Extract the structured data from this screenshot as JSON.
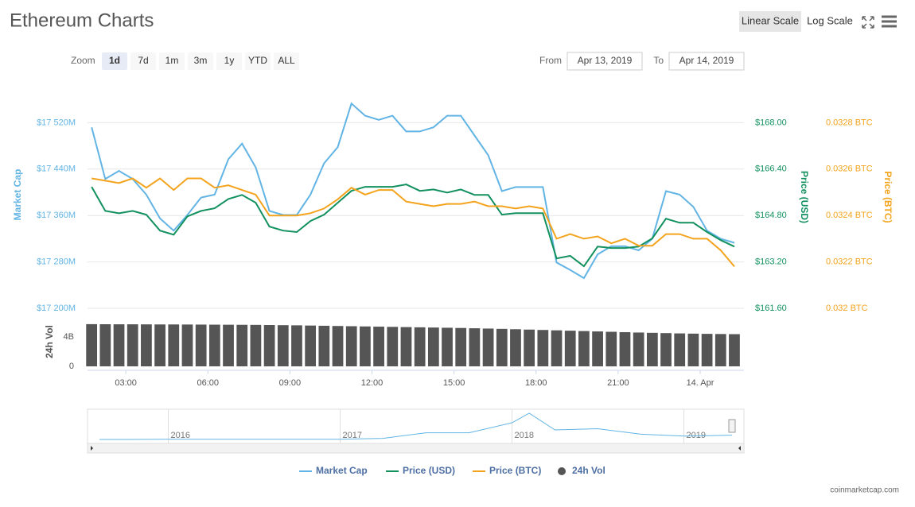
{
  "chart_data": [
    {
      "type": "line",
      "title": "Ethereum Charts",
      "log_scale": false,
      "grid": true,
      "ylabel": "Market Cap",
      "y2label": "Price (USD)",
      "y3label": "Price (BTC)",
      "xlim": [
        1.6,
        25.6
      ],
      "ylim": [
        17200,
        17600
      ],
      "yticks": [
        {
          "value": 17200,
          "label": "$17 200M"
        },
        {
          "value": 17280,
          "label": "$17 280M"
        },
        {
          "value": 17360,
          "label": "$17 360M"
        },
        {
          "value": 17440,
          "label": "$17 440M"
        },
        {
          "value": 17520,
          "label": "$17 520M"
        }
      ],
      "y2lim": [
        161.6,
        169.6
      ],
      "y2ticks": [
        {
          "value": 161.6,
          "label": "$161.60"
        },
        {
          "value": 163.2,
          "label": "$163.20"
        },
        {
          "value": 164.8,
          "label": "$164.80"
        },
        {
          "value": 166.4,
          "label": "$166.40"
        },
        {
          "value": 168,
          "label": "$168.00"
        }
      ],
      "y3lim": [
        0.032,
        0.033
      ],
      "y3ticks": [
        {
          "value": 0.032,
          "label": "0.032 BTC"
        },
        {
          "value": 0.0322,
          "label": "0.0322 BTC"
        },
        {
          "value": 0.0324,
          "label": "0.0324 BTC"
        },
        {
          "value": 0.0326,
          "label": "0.0326 BTC"
        },
        {
          "value": 0.0328,
          "label": "0.0328 BTC"
        }
      ],
      "x": [
        1.75,
        2.25,
        2.75,
        3.25,
        3.75,
        4.25,
        4.75,
        5.25,
        5.75,
        6.25,
        6.75,
        7.25,
        7.75,
        8.25,
        8.75,
        9.25,
        9.75,
        10.25,
        10.75,
        11.25,
        11.75,
        12.25,
        12.75,
        13.25,
        13.75,
        14.25,
        14.75,
        15.25,
        15.75,
        16.25,
        16.75,
        17.25,
        17.75,
        18.25,
        18.75,
        19.25,
        19.75,
        20.25,
        20.75,
        21.25,
        21.75,
        22.25,
        22.75,
        23.25,
        23.75,
        24.25,
        24.75,
        25.25
      ],
      "series": [
        {
          "name": "Market Cap",
          "color": "#62b4e4",
          "axis": "y",
          "values": [
            17512,
            17423,
            17437,
            17423,
            17396,
            17355,
            17334,
            17361,
            17391,
            17396,
            17457,
            17484,
            17443,
            17368,
            17361,
            17361,
            17396,
            17450,
            17478,
            17553,
            17532,
            17525,
            17532,
            17505,
            17505,
            17512,
            17532,
            17532,
            17498,
            17464,
            17402,
            17409,
            17409,
            17409,
            17279,
            17266,
            17252,
            17293,
            17307,
            17307,
            17300,
            17320,
            17402,
            17396,
            17375,
            17334,
            17320,
            17313
          ]
        },
        {
          "name": "Price (USD)",
          "color": "#12915f",
          "axis": "y2",
          "values": [
            165.79,
            164.96,
            164.88,
            164.96,
            164.83,
            164.28,
            164.14,
            164.77,
            164.96,
            165.05,
            165.37,
            165.51,
            165.24,
            164.42,
            164.28,
            164.23,
            164.61,
            164.83,
            165.24,
            165.65,
            165.79,
            165.79,
            165.79,
            165.87,
            165.65,
            165.7,
            165.59,
            165.7,
            165.51,
            165.51,
            164.83,
            164.88,
            164.88,
            164.88,
            163.32,
            163.41,
            163.05,
            163.73,
            163.68,
            163.68,
            163.73,
            164.01,
            164.69,
            164.55,
            164.55,
            164.23,
            163.95,
            163.73
          ]
        },
        {
          "name": "Price (BTC)",
          "color": "#f4a31c",
          "axis": "y3",
          "values": [
            0.03256,
            0.03255,
            0.03254,
            0.03256,
            0.03252,
            0.03256,
            0.03251,
            0.03256,
            0.03256,
            0.03252,
            0.03253,
            0.03251,
            0.03249,
            0.0324,
            0.0324,
            0.0324,
            0.03241,
            0.03243,
            0.03247,
            0.03252,
            0.03249,
            0.03251,
            0.03251,
            0.03246,
            0.03245,
            0.03244,
            0.03245,
            0.03245,
            0.03246,
            0.03244,
            0.03244,
            0.03243,
            0.03244,
            0.03243,
            0.0323,
            0.03232,
            0.0323,
            0.03231,
            0.03228,
            0.0323,
            0.03227,
            0.03227,
            0.03232,
            0.03232,
            0.0323,
            0.0323,
            0.03225,
            0.03218
          ]
        }
      ]
    },
    {
      "type": "bar",
      "ylabel": "24h Vol",
      "xlim": [
        1.6,
        25.6
      ],
      "xticks": [
        {
          "value": 3,
          "label": "03:00"
        },
        {
          "value": 6,
          "label": "06:00"
        },
        {
          "value": 9,
          "label": "09:00"
        },
        {
          "value": 12,
          "label": "12:00"
        },
        {
          "value": 15,
          "label": "15:00"
        },
        {
          "value": 18,
          "label": "18:00"
        },
        {
          "value": 21,
          "label": "21:00"
        },
        {
          "value": 24,
          "label": "14. Apr"
        }
      ],
      "ylim": [
        0,
        6
      ],
      "yticks": [
        0,
        {
          "value": 4,
          "label": "4B"
        }
      ],
      "x": [
        1.75,
        2.25,
        2.75,
        3.25,
        3.75,
        4.25,
        4.75,
        5.25,
        5.75,
        6.25,
        6.75,
        7.25,
        7.75,
        8.25,
        8.75,
        9.25,
        9.75,
        10.25,
        10.75,
        11.25,
        11.75,
        12.25,
        12.75,
        13.25,
        13.75,
        14.25,
        14.75,
        15.25,
        15.75,
        16.25,
        16.75,
        17.25,
        17.75,
        18.25,
        18.75,
        19.25,
        19.75,
        20.25,
        20.75,
        21.25,
        21.75,
        22.25,
        22.75,
        23.25,
        23.75,
        24.25,
        24.75,
        25.25
      ],
      "series": [
        {
          "name": "24h Vol",
          "color": "#555555",
          "values": [
            5.74,
            5.73,
            5.72,
            5.72,
            5.71,
            5.7,
            5.7,
            5.69,
            5.68,
            5.67,
            5.66,
            5.65,
            5.64,
            5.62,
            5.6,
            5.58,
            5.55,
            5.52,
            5.49,
            5.46,
            5.43,
            5.4,
            5.37,
            5.34,
            5.31,
            5.28,
            5.25,
            5.22,
            5.18,
            5.14,
            5.1,
            5.05,
            5.0,
            4.95,
            4.9,
            4.85,
            4.8,
            4.75,
            4.7,
            4.65,
            4.6,
            4.56,
            4.52,
            4.48,
            4.45,
            4.42,
            4.4,
            4.38
          ]
        }
      ]
    },
    {
      "type": "line",
      "color": "#62b4e4",
      "xlim": [
        2015.53,
        2019.28
      ],
      "xticks": [
        2016,
        2017,
        2018,
        2019
      ],
      "x": [
        2015.6,
        2015.75,
        2016,
        2016.25,
        2016.5,
        2016.75,
        2017,
        2017.25,
        2017.5,
        2017.75,
        2018,
        2018.1,
        2018.25,
        2018.5,
        2018.75,
        2019,
        2019.28
      ],
      "values": [
        0.1,
        0.1,
        0.7,
        0.9,
        1.0,
        0.9,
        0.7,
        4.5,
        28,
        28,
        70,
        110,
        40,
        45,
        22,
        14,
        18
      ]
    }
  ],
  "controls": {
    "scale_buttons": [
      "Linear Scale",
      "Log Scale"
    ],
    "zoom_label": "Zoom",
    "zoom_buttons": [
      "1d",
      "7d",
      "1m",
      "3m",
      "1y",
      "YTD",
      "ALL"
    ],
    "zoom_selected": 0,
    "from_label": "From",
    "from": "Apr 13, 2019",
    "to_label": "To",
    "to": "Apr 14, 2019"
  },
  "credit": "coinmarketcap.com"
}
